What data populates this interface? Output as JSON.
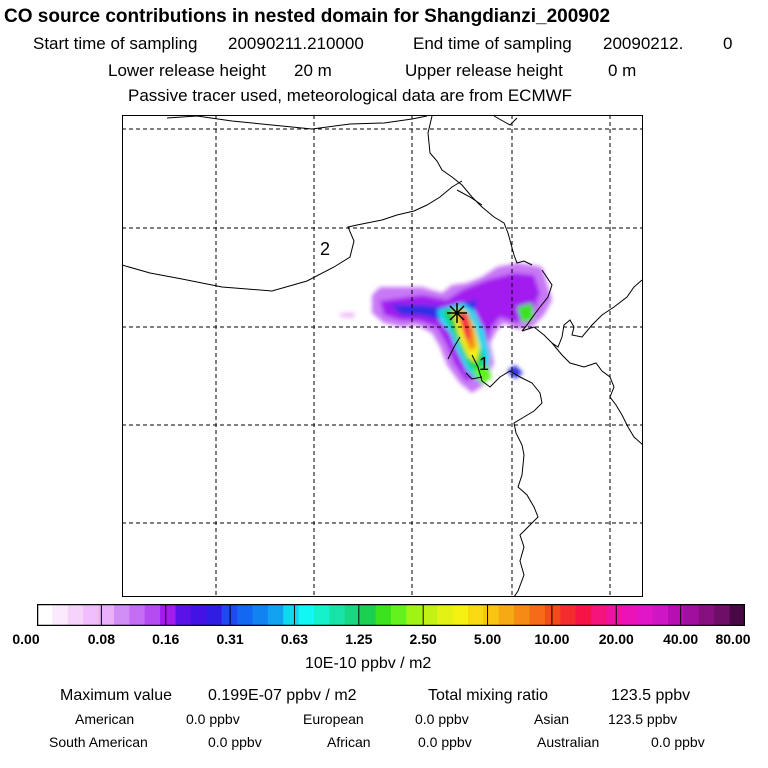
{
  "header": {
    "title": "CO  source contributions in nested domain for Shangdianzi_200902",
    "start_label": "Start time of sampling",
    "start_value": "20090211.210000",
    "end_label": "End time of sampling",
    "end_value": "20090212.",
    "end_value2": "0",
    "lower_label": "Lower release height",
    "lower_value": "20 m",
    "upper_label": "Upper release height",
    "upper_value": "0 m",
    "note": "Passive tracer used, meteorological data are from ECMWF"
  },
  "map": {
    "labels": [
      "2",
      "1"
    ],
    "receptor_symbol": "✱"
  },
  "colorbar": {
    "ticks": [
      "0.00",
      "0.08",
      "0.16",
      "0.31",
      "0.63",
      "1.25",
      "2.50",
      "5.00",
      "10.00",
      "20.00",
      "40.00",
      "80.00"
    ],
    "colors": [
      "#ffffff",
      "#fbeafd",
      "#f5d3fb",
      "#f0befb",
      "#ebb0fa",
      "#d18ef7",
      "#c46cf4",
      "#b44cf2",
      "#a21cf0",
      "#5a13e6",
      "#4313e6",
      "#2f1de4",
      "#2049f4",
      "#1367f0",
      "#1282f2",
      "#12a2f2",
      "#12d7f0",
      "#12f7f3",
      "#14f1cb",
      "#17e3a6",
      "#17d782",
      "#1bd050",
      "#3be31e",
      "#64f21e",
      "#9ff414",
      "#c2f214",
      "#e3f114",
      "#f5f212",
      "#f7da12",
      "#f9c412",
      "#f5a914",
      "#f58b14",
      "#f56b19",
      "#f44b1b",
      "#f52c2e",
      "#f61446",
      "#f5137c",
      "#ef12a3",
      "#ea13b7",
      "#e216c9",
      "#cf16c4",
      "#b80fb3",
      "#a00f9e",
      "#86107f",
      "#6d0e67",
      "#4a0745"
    ],
    "units": "10E-10 ppbv / m2"
  },
  "summary": {
    "max_label": "Maximum value",
    "max_value": "0.199E-07 ppbv / m2",
    "total_label": "Total mixing ratio",
    "total_value": "123.5 ppbv",
    "regions": [
      {
        "name": "American",
        "value": "0.0 ppbv"
      },
      {
        "name": "European",
        "value": "0.0 ppbv"
      },
      {
        "name": "Asian",
        "value": "123.5 ppbv"
      },
      {
        "name": "South American",
        "value": "0.0 ppbv"
      },
      {
        "name": "African",
        "value": "0.0 ppbv"
      },
      {
        "name": "Australian",
        "value": "0.0 ppbv"
      }
    ]
  }
}
